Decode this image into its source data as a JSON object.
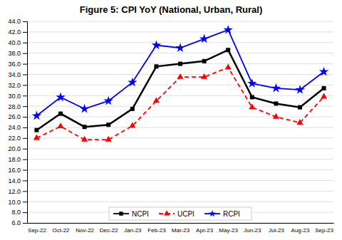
{
  "chart_data": {
    "type": "line",
    "title": "Figure 5: CPI YoY (National, Urban, Rural)",
    "categories": [
      "Sep-22",
      "Oct-22",
      "Nov-22",
      "Dec-22",
      "Jan-23",
      "Feb-23",
      "Mar-23",
      "Apr-23",
      "May-23",
      "Jun-23",
      "Jul-23",
      "Aug-23",
      "Sep-23"
    ],
    "series": [
      {
        "name": "NCPI",
        "color": "#000000",
        "marker": "square",
        "line_style": "solid",
        "values": [
          23.5,
          26.6,
          24.1,
          24.5,
          27.5,
          35.5,
          36.0,
          36.5,
          38.6,
          29.7,
          28.5,
          27.8,
          31.4
        ]
      },
      {
        "name": "UCPI",
        "color": "#ff0000",
        "marker": "triangle",
        "line_style": "dashed",
        "values": [
          22.0,
          24.2,
          21.7,
          21.7,
          24.3,
          29.0,
          33.5,
          33.5,
          35.3,
          27.8,
          26.0,
          24.9,
          29.8
        ]
      },
      {
        "name": "RCPI",
        "color": "#0000ff",
        "marker": "star",
        "line_style": "solid",
        "values": [
          26.2,
          29.7,
          27.5,
          29.0,
          32.5,
          39.5,
          39.0,
          40.7,
          42.4,
          32.3,
          31.4,
          31.1,
          34.5
        ]
      }
    ],
    "ylim": [
      6.0,
      44.0
    ],
    "yticks": [
      {
        "value": 6,
        "label": "6.0"
      },
      {
        "value": 8,
        "label": "8.0"
      },
      {
        "value": 10,
        "label": "10.0"
      },
      {
        "value": 12,
        "label": "12.0"
      },
      {
        "value": 14,
        "label": "14.0"
      },
      {
        "value": 16,
        "label": "16.0"
      },
      {
        "value": 18,
        "label": "18.0"
      },
      {
        "value": 20,
        "label": "20.0"
      },
      {
        "value": 22,
        "label": "22.0"
      },
      {
        "value": 24,
        "label": "24.0"
      },
      {
        "value": 26,
        "label": "26.0"
      },
      {
        "value": 28,
        "label": "28.0"
      },
      {
        "value": 30,
        "label": "30.0"
      },
      {
        "value": 32,
        "label": "32.0"
      },
      {
        "value": 34,
        "label": "34.0"
      },
      {
        "value": 36,
        "label": "36.0"
      },
      {
        "value": 38,
        "label": "38.0"
      },
      {
        "value": 40,
        "label": "40.0"
      },
      {
        "value": 42,
        "label": "42.0"
      },
      {
        "value": 44,
        "label": "44.0"
      }
    ],
    "grid": true,
    "legend": "bottom"
  }
}
